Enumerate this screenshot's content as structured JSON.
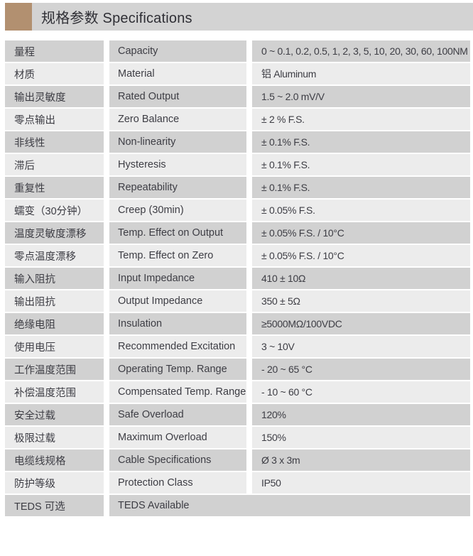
{
  "header": {
    "title": "规格参数 Specifications"
  },
  "colors": {
    "accent_square": "#b29070",
    "header_band": "#d3d3d3",
    "row_dark": "#d1d1d1",
    "row_light": "#ececec",
    "title_text": "#2f2f35",
    "text": "#3d3d44"
  },
  "table": {
    "rows": [
      {
        "cn": "量程",
        "en": "Capacity",
        "value": "0 ~ 0.1, 0.2, 0.5, 1, 2, 3, 5, 10, 20, 30, 60, 100NM"
      },
      {
        "cn": "材质",
        "en": "Material",
        "value": "铝 Aluminum"
      },
      {
        "cn": "输出灵敏度",
        "en": "Rated Output",
        "value": "1.5 ~ 2.0 mV/V"
      },
      {
        "cn": "零点输出",
        "en": "Zero Balance",
        "value": "± 2 % F.S."
      },
      {
        "cn": "非线性",
        "en": "Non-linearity",
        "value": "± 0.1% F.S."
      },
      {
        "cn": "滞后",
        "en": "Hysteresis",
        "value": "± 0.1% F.S."
      },
      {
        "cn": "重复性",
        "en": "Repeatability",
        "value": "± 0.1% F.S."
      },
      {
        "cn": "蠕变（30分钟）",
        "en": "Creep (30min)",
        "value": "± 0.05% F.S."
      },
      {
        "cn": "温度灵敏度漂移",
        "en": "Temp. Effect on Output",
        "value": "± 0.05% F.S. / 10°C"
      },
      {
        "cn": "零点温度漂移",
        "en": "Temp. Effect on Zero",
        "value": "± 0.05% F.S. / 10°C"
      },
      {
        "cn": "输入阻抗",
        "en": "Input Impedance",
        "value": "410 ± 10Ω"
      },
      {
        "cn": "输出阻抗",
        "en": "Output Impedance",
        "value": "350 ± 5Ω"
      },
      {
        "cn": "绝缘电阻",
        "en": "Insulation",
        "value": "≥5000MΩ/100VDC"
      },
      {
        "cn": "使用电压",
        "en": "Recommended Excitation",
        "value": "3 ~ 10V"
      },
      {
        "cn": "工作温度范围",
        "en": "Operating Temp. Range",
        "value": "- 20 ~ 65 °C"
      },
      {
        "cn": "补偿温度范围",
        "en": "Compensated Temp. Range",
        "value": "- 10 ~ 60 °C"
      },
      {
        "cn": "安全过载",
        "en": "Safe Overload",
        "value": "120%"
      },
      {
        "cn": "极限过载",
        "en": "Maximum Overload",
        "value": "150%"
      },
      {
        "cn": "电缆线规格",
        "en": "Cable Specifications",
        "value": "Ø 3 x 3m"
      },
      {
        "cn": "防护等级",
        "en": "Protection Class",
        "value": "IP50"
      },
      {
        "cn": "TEDS 可选",
        "en": "TEDS Available",
        "value": ""
      }
    ]
  }
}
